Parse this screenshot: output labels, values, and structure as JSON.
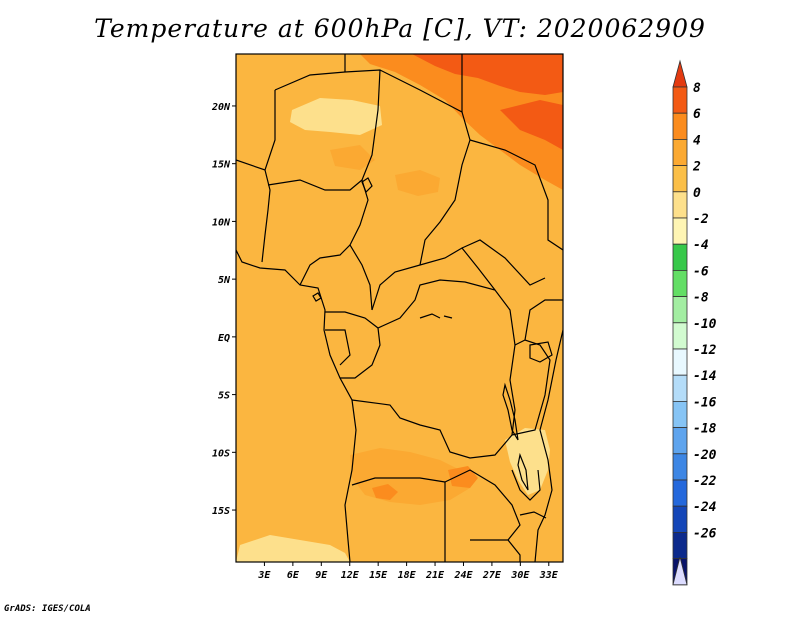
{
  "title": "Temperature at 600hPa [C], VT: 2020062909",
  "credit": "GrADS: IGES/COLA",
  "map": {
    "lon_range": [
      0,
      34.5
    ],
    "lat_range": [
      -19.5,
      24.5
    ],
    "lon_ticks": [
      "3E",
      "6E",
      "9E",
      "12E",
      "15E",
      "18E",
      "21E",
      "24E",
      "27E",
      "30E",
      "33E"
    ],
    "lat_ticks": [
      "20N",
      "15N",
      "10N",
      "5N",
      "EQ",
      "5S",
      "10S",
      "15S"
    ],
    "base_field_color": "#fbb640"
  },
  "colorbar": {
    "labels": [
      "8",
      "6",
      "4",
      "2",
      "0",
      "-2",
      "-4",
      "-6",
      "-8",
      "-10",
      "-12",
      "-14",
      "-16",
      "-18",
      "-20",
      "-22",
      "-24",
      "-26"
    ],
    "colors": [
      "#e33a10",
      "#f35a14",
      "#fb8c1e",
      "#fba932",
      "#fbbf48",
      "#fde08c",
      "#fef5b4",
      "#37c84a",
      "#63de65",
      "#a3eea2",
      "#d2fbd0",
      "#e8f8ff",
      "#b4dcf8",
      "#86c4f5",
      "#5ea4ee",
      "#3d86e4",
      "#2468dc",
      "#1446b8",
      "#0c2a8c",
      "#08126a",
      "#dcdcff"
    ]
  }
}
